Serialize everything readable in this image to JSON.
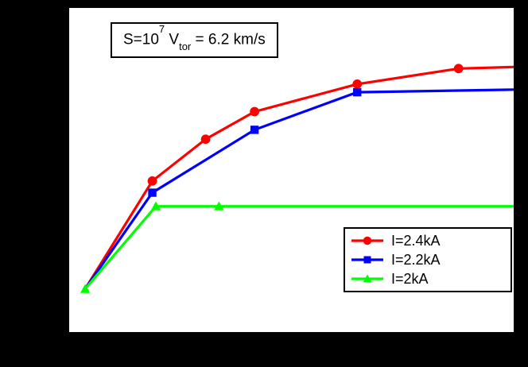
{
  "figure": {
    "background_color": "#000000",
    "plot_background_color": "#ffffff",
    "frame_color": "#000000"
  },
  "annotation": {
    "prefix": "S=10",
    "exponent": "7",
    "variable": " V",
    "subscript": "tor",
    "suffix": " = 6.2 km/s"
  },
  "chart_data": {
    "type": "line",
    "title": "S=10^7 V_tor = 6.2 km/s",
    "xlabel": "",
    "ylabel": "",
    "axis_tick_labels_visible": false,
    "x_range_normalized": [
      0,
      1
    ],
    "y_range_normalized": [
      0,
      1
    ],
    "grid": false,
    "legend_position": "lower right",
    "series": [
      {
        "name": "I=2.4kA",
        "color": "#ff0000",
        "marker": "circle",
        "points_normalized": [
          [
            0.036,
            0.133
          ],
          [
            0.187,
            0.466
          ],
          [
            0.307,
            0.595
          ],
          [
            0.417,
            0.68
          ],
          [
            0.648,
            0.765
          ],
          [
            0.876,
            0.813
          ],
          [
            1.0,
            0.818
          ]
        ],
        "marker_indices": [
          1,
          2,
          3,
          4,
          5
        ]
      },
      {
        "name": "I=2.2kA",
        "color": "#0000ff",
        "marker": "square",
        "points_normalized": [
          [
            0.036,
            0.133
          ],
          [
            0.187,
            0.43
          ],
          [
            0.417,
            0.624
          ],
          [
            0.648,
            0.74
          ],
          [
            1.0,
            0.748
          ]
        ],
        "marker_indices": [
          1,
          2,
          3
        ]
      },
      {
        "name": "I=2kA",
        "color": "#00ff00",
        "marker": "triangle",
        "points_normalized": [
          [
            0.036,
            0.133
          ],
          [
            0.195,
            0.388
          ],
          [
            0.337,
            0.388
          ],
          [
            1.0,
            0.388
          ]
        ],
        "marker_indices": [
          0,
          1,
          2
        ]
      }
    ]
  }
}
